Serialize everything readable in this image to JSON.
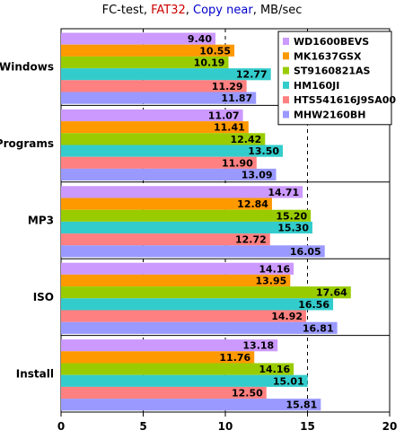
{
  "title_parts": [
    {
      "text": "FC-test, ",
      "color": "#000000"
    },
    {
      "text": "FAT32",
      "color": "#cc0000"
    },
    {
      "text": ", ",
      "color": "#000000"
    },
    {
      "text": "Copy near",
      "color": "#0000cc"
    },
    {
      "text": ", MB/sec",
      "color": "#000000"
    }
  ],
  "chart_data": {
    "type": "bar",
    "orientation": "horizontal",
    "categories": [
      "Windows",
      "Programs",
      "MP3",
      "ISO",
      "Install"
    ],
    "series": [
      {
        "name": "WD1600BEVS",
        "color": "#cc99ff",
        "values": [
          9.4,
          11.07,
          14.71,
          14.16,
          13.18
        ]
      },
      {
        "name": "MK1637GSX",
        "color": "#ff9900",
        "values": [
          10.55,
          11.41,
          12.84,
          13.95,
          11.76
        ]
      },
      {
        "name": "ST9160821AS",
        "color": "#99cc00",
        "values": [
          10.19,
          12.42,
          15.2,
          17.64,
          14.16
        ]
      },
      {
        "name": "HM160JI",
        "color": "#33cccc",
        "values": [
          12.77,
          13.5,
          15.3,
          16.56,
          15.01
        ]
      },
      {
        "name": "HTS541616J9SA00",
        "color": "#ff8080",
        "values": [
          11.29,
          11.9,
          12.72,
          14.92,
          12.5
        ]
      },
      {
        "name": "MHW2160BH",
        "color": "#9999ff",
        "values": [
          11.87,
          13.09,
          16.05,
          16.81,
          15.81
        ]
      }
    ],
    "xlim": [
      0,
      20
    ],
    "xticks": [
      "0",
      "5",
      "10",
      "15",
      "20"
    ],
    "value_labels": [
      [
        "9.40",
        "11.07",
        "14.71",
        "14.16",
        "13.18"
      ],
      [
        "10.55",
        "11.41",
        "12.84",
        "13.95",
        "11.76"
      ],
      [
        "10.19",
        "12.42",
        "15.20",
        "17.64",
        "14.16"
      ],
      [
        "12.77",
        "13.50",
        "15.30",
        "16.56",
        "15.01"
      ],
      [
        "11.29",
        "11.90",
        "12.72",
        "14.92",
        "12.50"
      ],
      [
        "11.87",
        "13.09",
        "16.05",
        "16.81",
        "15.81"
      ]
    ],
    "grid": "dashed vertical at 5, 10, 15",
    "legend_position": "top-right"
  }
}
